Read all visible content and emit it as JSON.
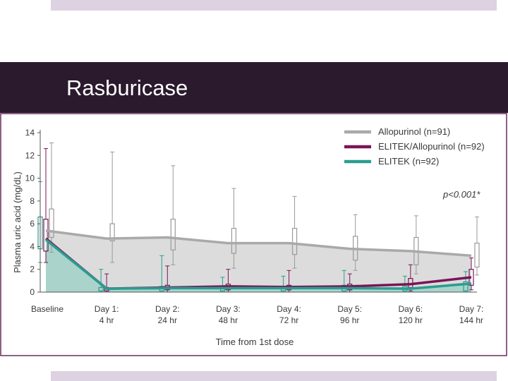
{
  "slide": {
    "title": "Rasburicase"
  },
  "colors": {
    "title_band": "#2b1a2e",
    "accent_bar": "#ddd2e1",
    "frame_border": "#6b2a5c",
    "allopurinol": "#a9a9a9",
    "elitek_allopurinol": "#7a1456",
    "elitek": "#2a9d8f"
  },
  "chart_data": {
    "type": "line",
    "ylabel": "Plasma uric acid (mg/dL)",
    "xlabel": "Time from 1st dose",
    "ylim": [
      0,
      14
    ],
    "y_ticks": [
      "0",
      "2",
      "4",
      "6",
      "8",
      "10",
      "12",
      "14"
    ],
    "categories": [
      {
        "line1": "Baseline",
        "line2": ""
      },
      {
        "line1": "Day 1:",
        "line2": "4 hr"
      },
      {
        "line1": "Day 2:",
        "line2": "24 hr"
      },
      {
        "line1": "Day 3:",
        "line2": "48 hr"
      },
      {
        "line1": "Day 4:",
        "line2": "72 hr"
      },
      {
        "line1": "Day 5:",
        "line2": "96 hr"
      },
      {
        "line1": "Day 6:",
        "line2": "120 hr"
      },
      {
        "line1": "Day 7:",
        "line2": "144 hr"
      }
    ],
    "series": [
      {
        "name": "Allopurinol (n=91)",
        "color": "#a9a9a9",
        "values": [
          5.4,
          4.7,
          4.8,
          4.3,
          4.3,
          3.8,
          3.6,
          3.2
        ],
        "boxes": [
          {
            "low": 3.5,
            "q1": 4.8,
            "q3": 7.3,
            "high": 13.1
          },
          {
            "low": 2.6,
            "q1": 4.5,
            "q3": 6.0,
            "high": 12.3
          },
          {
            "low": 2.4,
            "q1": 3.7,
            "q3": 6.4,
            "high": 11.1
          },
          {
            "low": 2.1,
            "q1": 3.4,
            "q3": 5.6,
            "high": 9.1
          },
          {
            "low": 2.1,
            "q1": 3.3,
            "q3": 5.6,
            "high": 8.4
          },
          {
            "low": 1.9,
            "q1": 2.8,
            "q3": 4.9,
            "high": 6.8
          },
          {
            "low": 1.6,
            "q1": 2.4,
            "q3": 4.8,
            "high": 6.7
          },
          {
            "low": 1.5,
            "q1": 2.2,
            "q3": 4.3,
            "high": 6.6
          }
        ]
      },
      {
        "name": "ELITEK/Allopurinol (n=92)",
        "color": "#7a1456",
        "values": [
          4.7,
          0.3,
          0.4,
          0.5,
          0.45,
          0.5,
          0.7,
          1.3
        ],
        "boxes": [
          {
            "low": 2.6,
            "q1": 3.6,
            "q3": 6.4,
            "high": 12.6
          },
          {
            "low": 0.0,
            "q1": 0.1,
            "q3": 0.4,
            "high": 1.6
          },
          {
            "low": 0.0,
            "q1": 0.2,
            "q3": 0.6,
            "high": 2.3
          },
          {
            "low": 0.0,
            "q1": 0.2,
            "q3": 0.7,
            "high": 2.0
          },
          {
            "low": 0.0,
            "q1": 0.2,
            "q3": 0.6,
            "high": 1.9
          },
          {
            "low": 0.0,
            "q1": 0.2,
            "q3": 0.7,
            "high": 1.6
          },
          {
            "low": 0.1,
            "q1": 0.4,
            "q3": 1.2,
            "high": 2.4
          },
          {
            "low": 0.2,
            "q1": 0.6,
            "q3": 2.0,
            "high": 3.0
          }
        ]
      },
      {
        "name": "ELITEK (n=92)",
        "color": "#2a9d8f",
        "values": [
          4.6,
          0.3,
          0.35,
          0.35,
          0.35,
          0.35,
          0.3,
          0.75
        ],
        "boxes": [
          {
            "low": 2.6,
            "q1": 3.8,
            "q3": 6.6,
            "high": 9.7
          },
          {
            "low": 0.0,
            "q1": 0.1,
            "q3": 0.4,
            "high": 2.0
          },
          {
            "low": 0.0,
            "q1": 0.1,
            "q3": 0.5,
            "high": 3.2
          },
          {
            "low": 0.0,
            "q1": 0.1,
            "q3": 0.5,
            "high": 1.3
          },
          {
            "low": 0.0,
            "q1": 0.1,
            "q3": 0.5,
            "high": 1.4
          },
          {
            "low": 0.0,
            "q1": 0.1,
            "q3": 0.6,
            "high": 1.9
          },
          {
            "low": 0.0,
            "q1": 0.1,
            "q3": 0.5,
            "high": 1.4
          },
          {
            "low": 0.0,
            "q1": 0.1,
            "q3": 0.9,
            "high": 1.8
          }
        ]
      }
    ],
    "annotation": "p<0.001*",
    "legend_position": "top-right",
    "grid": false
  }
}
